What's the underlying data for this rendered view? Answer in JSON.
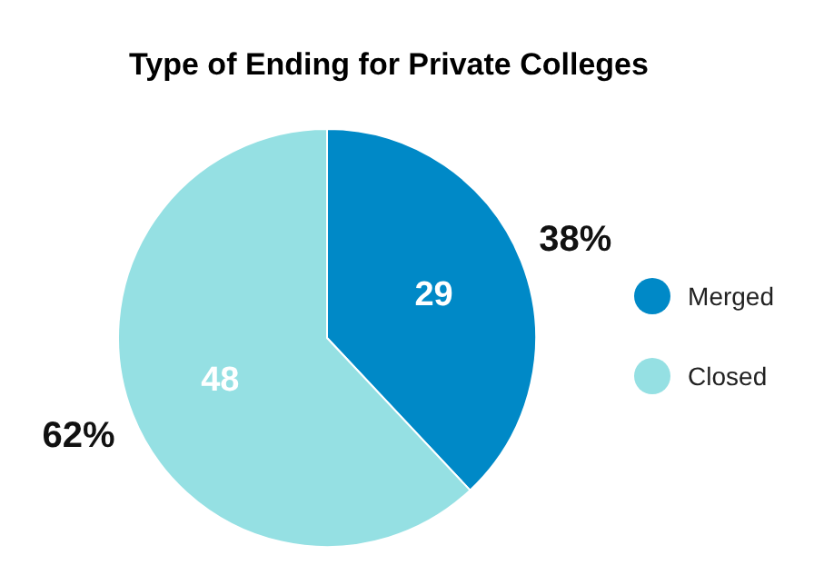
{
  "chart_data": {
    "type": "pie",
    "title": "Type of Ending for Private Colleges",
    "categories": [
      "Merged",
      "Closed"
    ],
    "values": [
      38,
      62
    ],
    "colors": [
      "#0089c7",
      "#95e0e3"
    ],
    "value_labels": [
      "38%",
      "62%"
    ],
    "annotations": [
      {
        "text": "29",
        "x": "Merged"
      },
      {
        "text": "48",
        "x": "Closed"
      }
    ],
    "legend": "right"
  }
}
